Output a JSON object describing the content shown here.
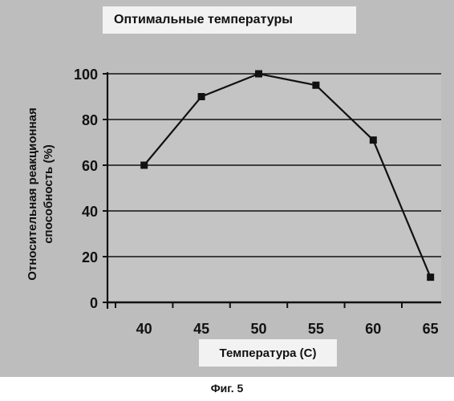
{
  "chart_data": {
    "type": "line",
    "title": "Оптимальные температуры",
    "xlabel": "Температура (C)",
    "ylabel_lines": [
      "Относительная реакционная",
      "способность (%)"
    ],
    "categories": [
      "40",
      "45",
      "50",
      "55",
      "60",
      "65"
    ],
    "x": [
      40,
      45,
      50,
      55,
      60,
      65
    ],
    "values": [
      60,
      90,
      100,
      95,
      71,
      11
    ],
    "y_ticks": [
      "0",
      "20",
      "40",
      "60",
      "80",
      "100"
    ],
    "ylim": [
      0,
      100
    ],
    "grid": true,
    "legend": "none",
    "colors": {
      "plot_background": "#c4c4c4",
      "gridline": "#111111",
      "series": "#111111"
    }
  },
  "caption": "Фиг. 5"
}
